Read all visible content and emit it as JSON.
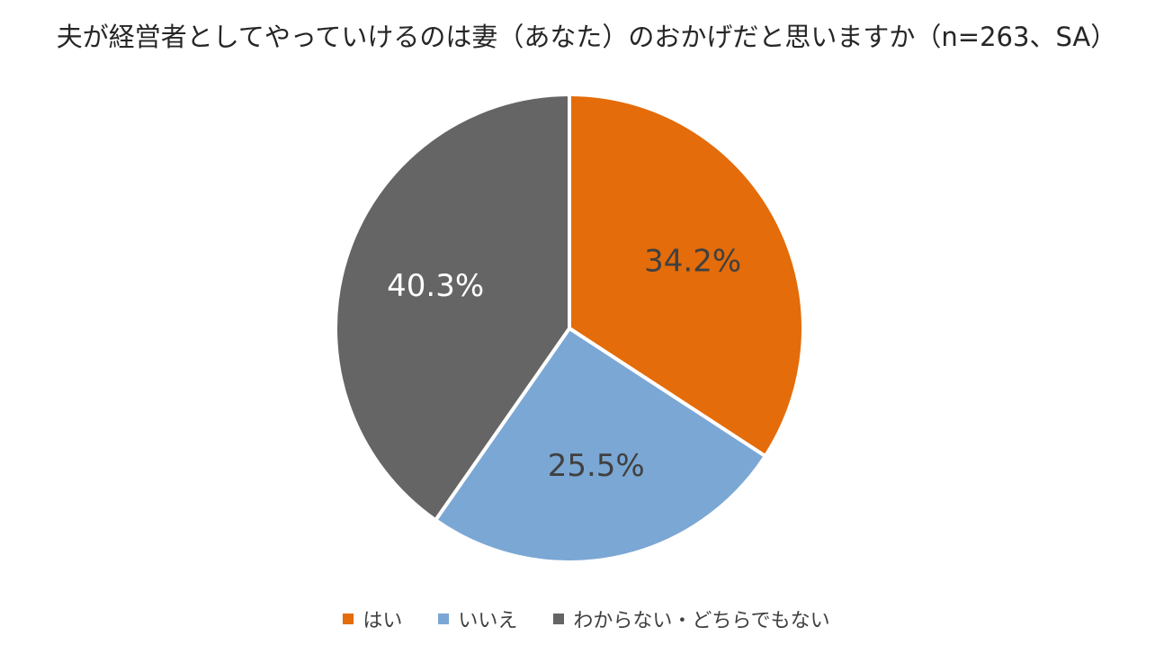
{
  "chart_data": {
    "type": "pie",
    "title": "夫が経営者としてやっていけるのは妻（あなた）のおかげだと思いますか（n=263、SA）",
    "categories": [
      "はい",
      "いいえ",
      "わからない・どちらでもない"
    ],
    "values": [
      34.2,
      25.5,
      40.3
    ],
    "data_labels": [
      "34.2%",
      "25.5%",
      "40.3%"
    ],
    "colors": [
      "#E46C0A",
      "#7BA7D4",
      "#656565"
    ],
    "label_colors": [
      "#404040",
      "#404040",
      "#FFFFFF"
    ],
    "start_angle": "12 o'clock, clockwise",
    "legend_position": "bottom"
  }
}
